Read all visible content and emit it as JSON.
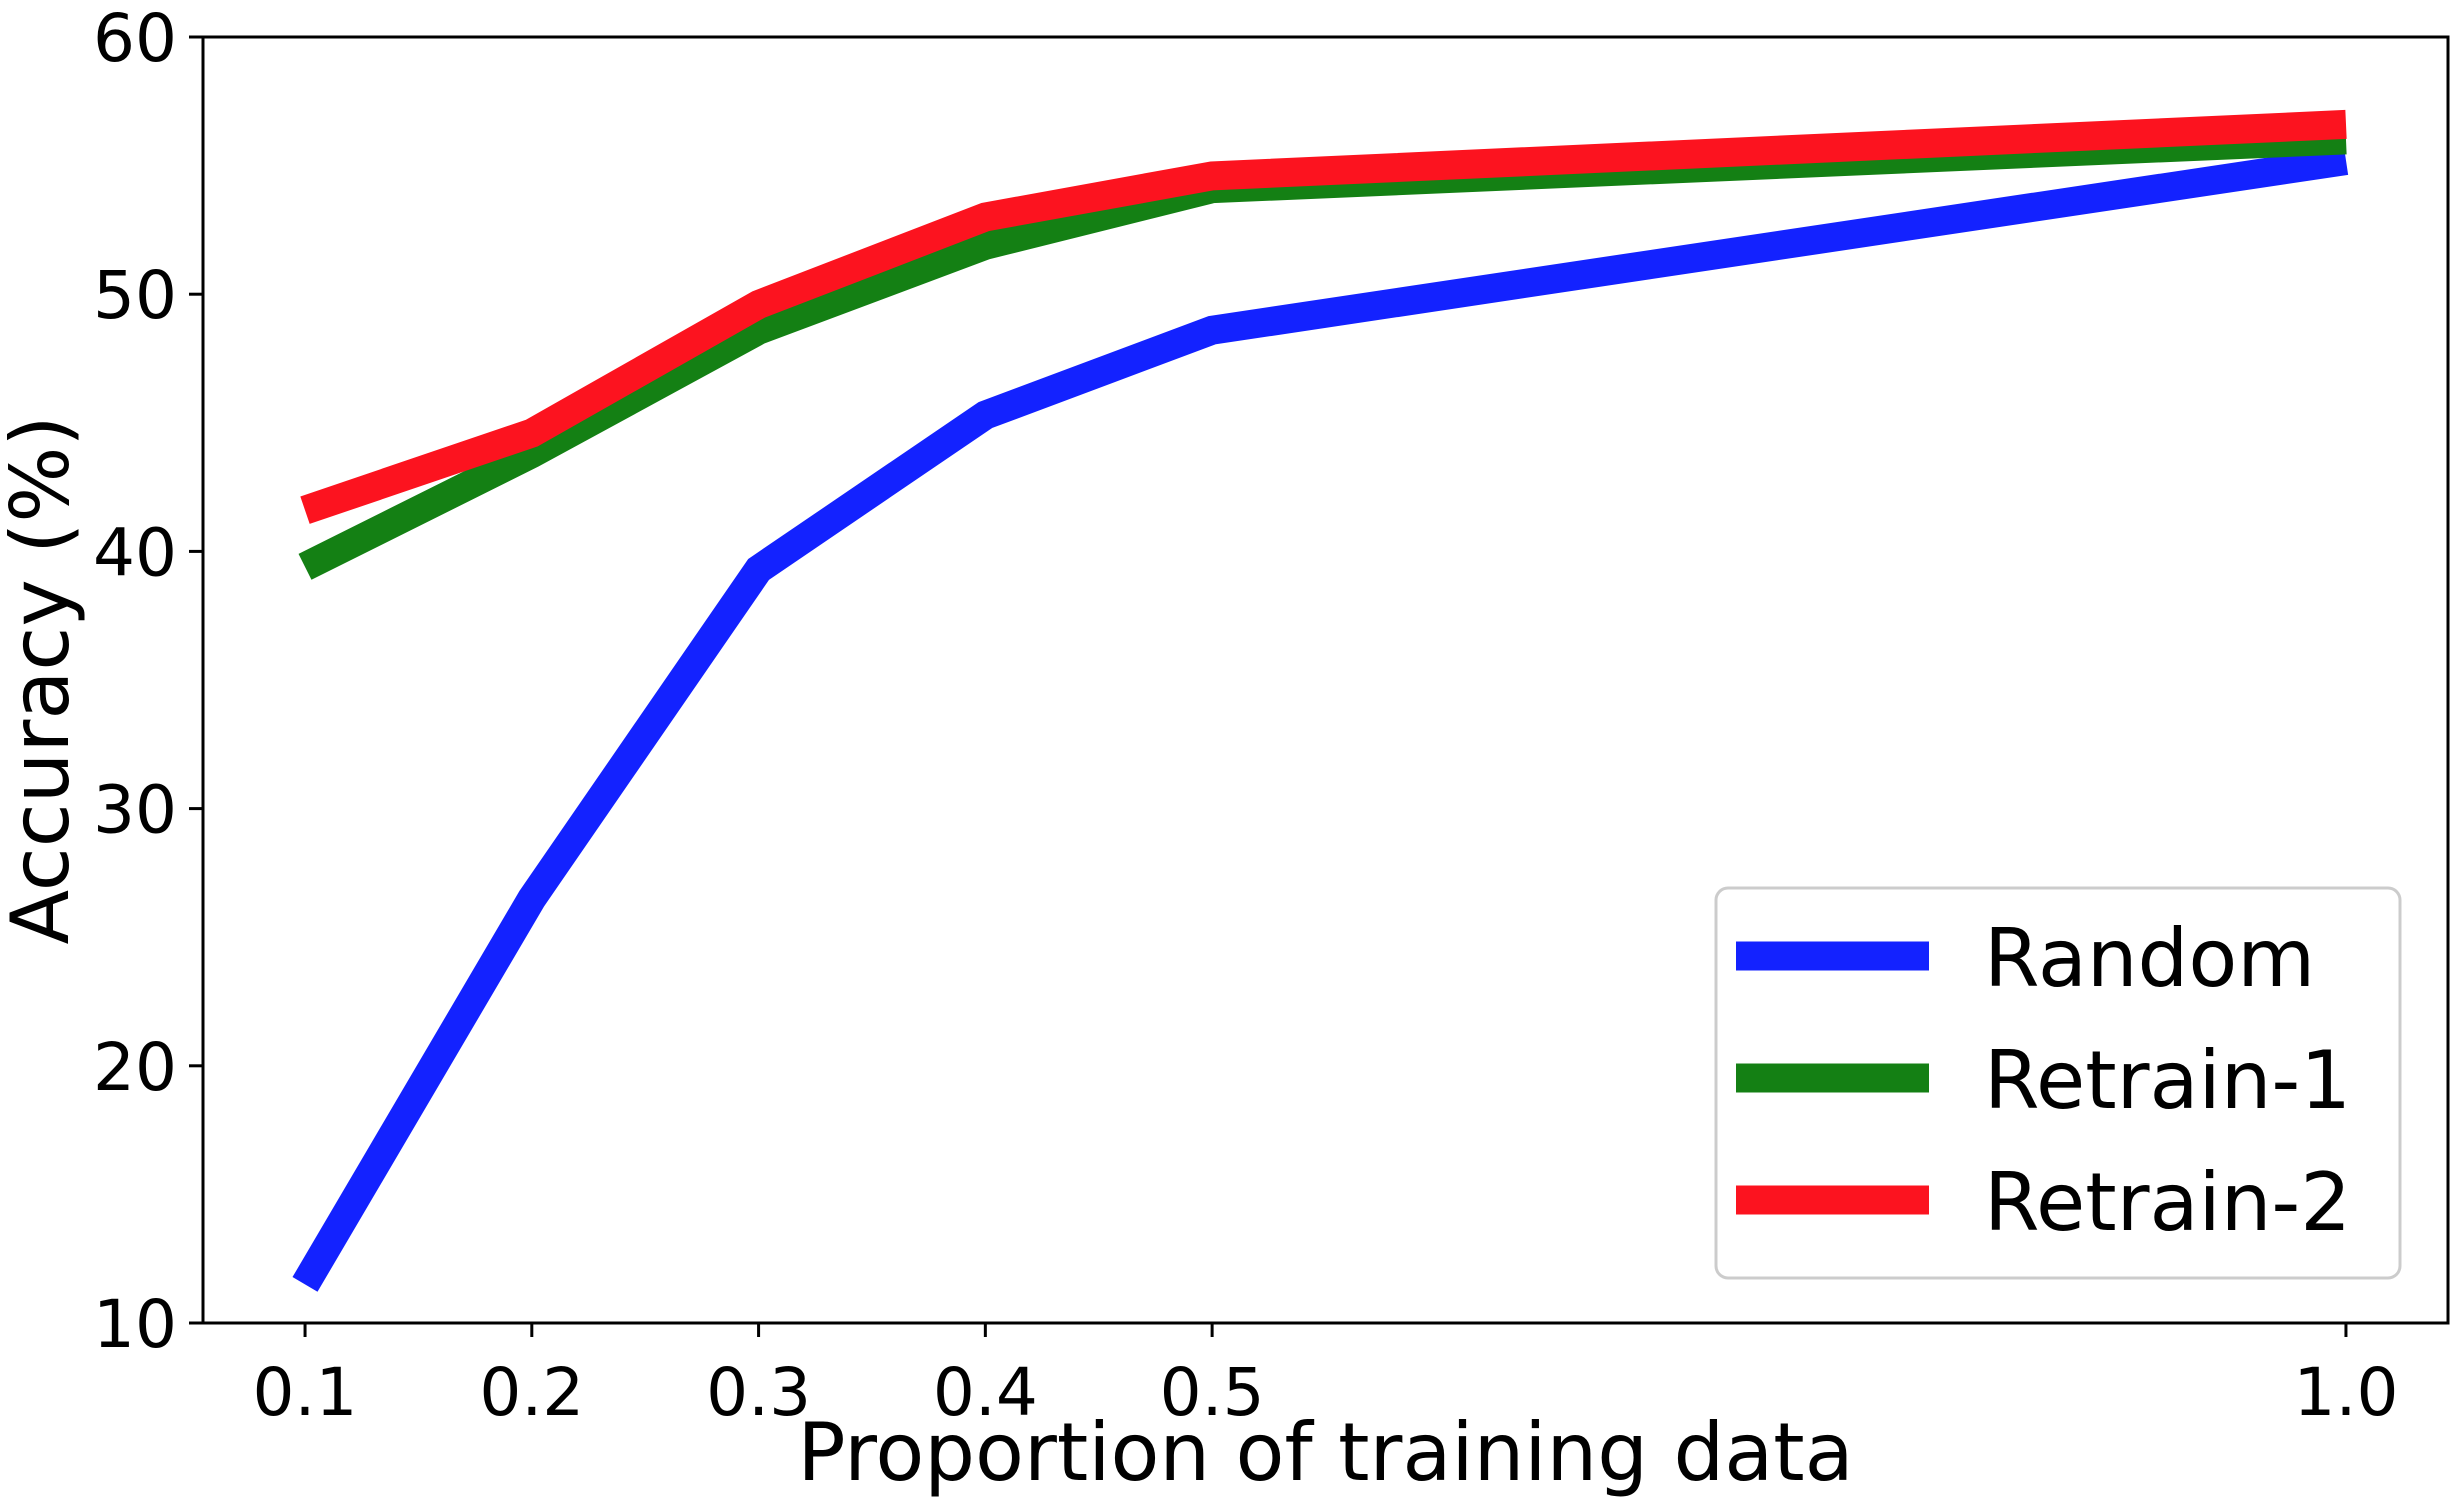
{
  "chart_data": {
    "type": "line",
    "title": "",
    "xlabel": "Proportion of training data",
    "ylabel": "Accuracy (%)",
    "x": [
      0.1,
      0.2,
      0.3,
      0.4,
      0.5,
      1.0
    ],
    "x_tick_labels": [
      "0.1",
      "0.2",
      "0.3",
      "0.4",
      "0.5",
      "1.0"
    ],
    "y_ticks": [
      10,
      20,
      30,
      40,
      50,
      60
    ],
    "y_tick_labels": [
      "10",
      "20",
      "30",
      "40",
      "50",
      "60"
    ],
    "xlim": [
      0.055,
      1.045
    ],
    "ylim": [
      10,
      60
    ],
    "grid": false,
    "legend_position": "lower-right",
    "series": [
      {
        "name": "Random",
        "color": "#1322ff",
        "values": [
          11.5,
          26.5,
          39.3,
          45.3,
          48.6,
          55.2
        ]
      },
      {
        "name": "Retrain-1",
        "color": "#148014",
        "values": [
          39.4,
          43.8,
          48.6,
          51.9,
          54.1,
          56.0
        ]
      },
      {
        "name": "Retrain-2",
        "color": "#fc131f",
        "values": [
          41.6,
          44.6,
          49.6,
          53.0,
          54.6,
          56.6
        ]
      }
    ]
  }
}
